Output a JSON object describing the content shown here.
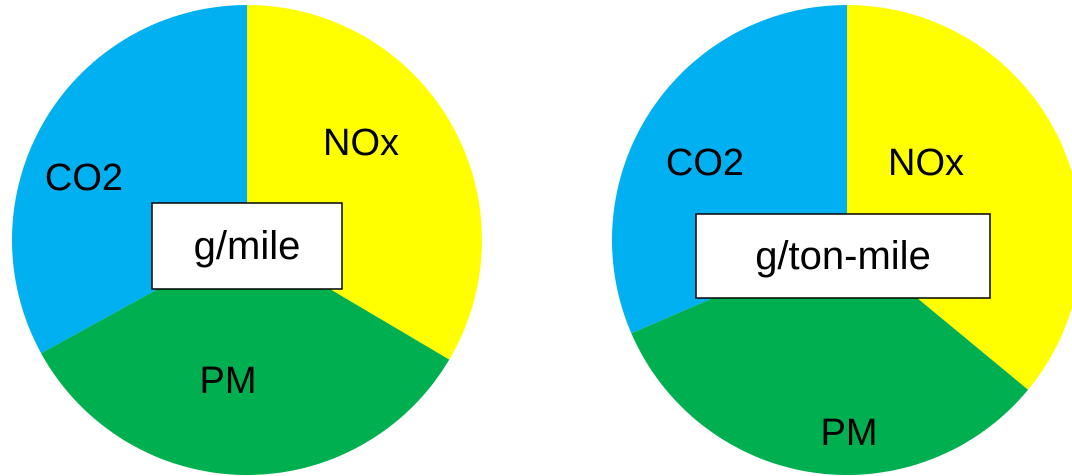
{
  "chart_data": [
    {
      "type": "pie",
      "unit_label": "g/mile",
      "start_angle_deg": 0,
      "slices": [
        {
          "label": "NOx",
          "value": 33.5,
          "color": "#FFFF00"
        },
        {
          "label": "PM",
          "value": 33.5,
          "color": "#00B050"
        },
        {
          "label": "CO2",
          "value": 33.0,
          "color": "#00B0F0"
        }
      ]
    },
    {
      "type": "pie",
      "unit_label": "g/ton-mile",
      "start_angle_deg": 0,
      "slices": [
        {
          "label": "NOx",
          "value": 36.0,
          "color": "#FFFF00"
        },
        {
          "label": "PM",
          "value": 32.5,
          "color": "#00B050"
        },
        {
          "label": "CO2",
          "value": 31.5,
          "color": "#00B0F0"
        }
      ]
    }
  ]
}
